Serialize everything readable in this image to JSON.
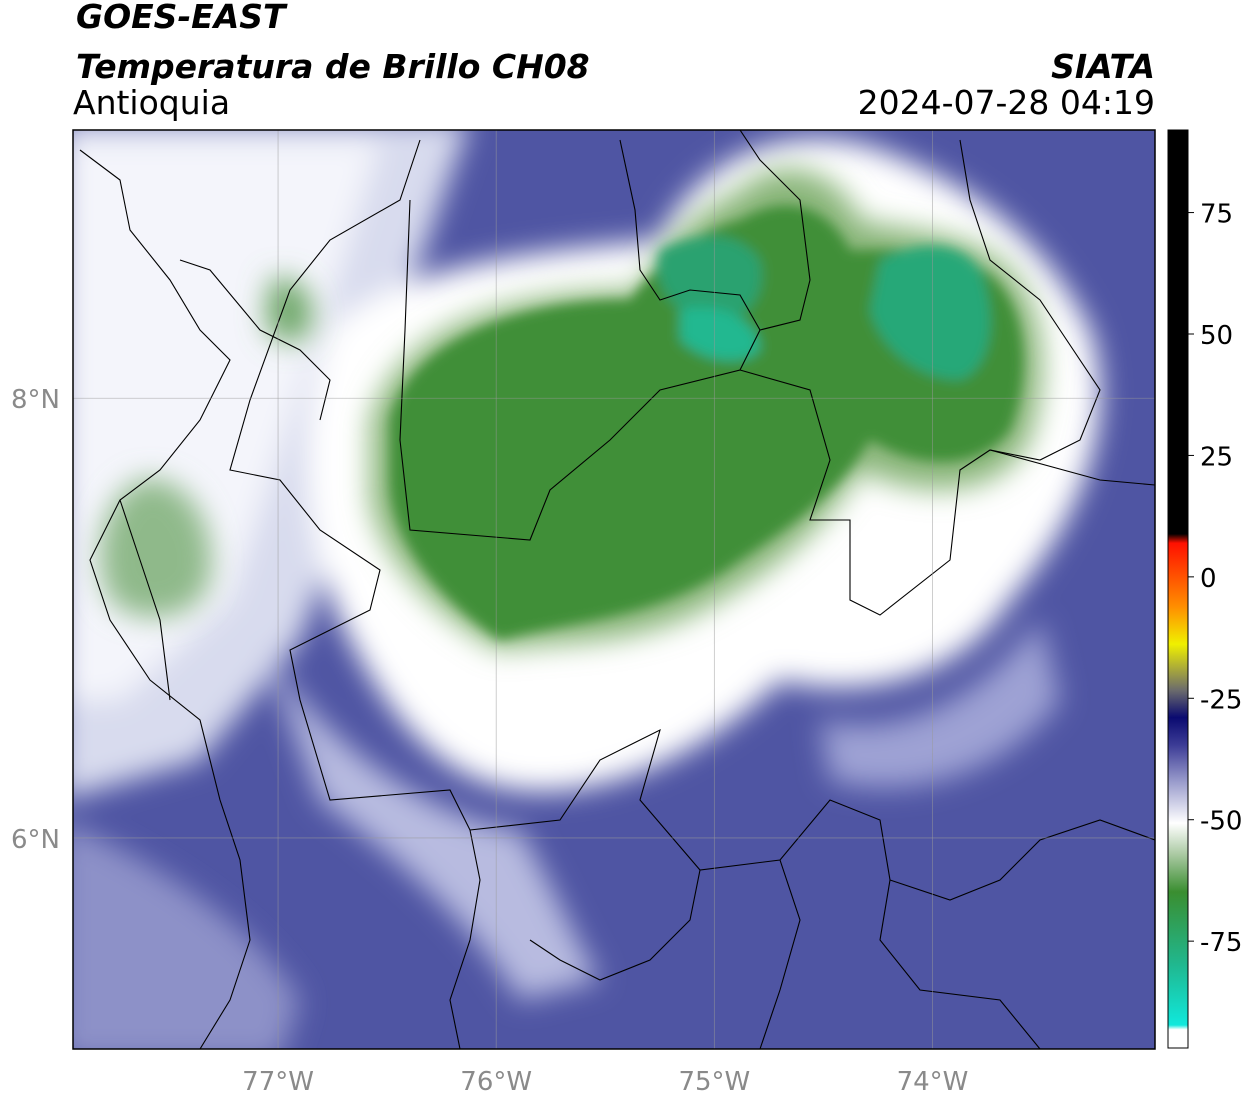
{
  "header": {
    "title": "GOES-EAST",
    "subtitle": "Temperatura de Brillo CH08",
    "region": "Antioquia",
    "source": "SIATA",
    "datetime": "2024-07-28 04:19"
  },
  "map": {
    "xlim": [
      -77.94,
      -72.98
    ],
    "ylim": [
      5.04,
      9.22
    ],
    "xticks": [
      {
        "value": -77,
        "label": "77°W"
      },
      {
        "value": -76,
        "label": "76°W"
      },
      {
        "value": -75,
        "label": "75°W"
      },
      {
        "value": -74,
        "label": "74°W"
      }
    ],
    "yticks": [
      {
        "value": 6,
        "label": "6°N"
      },
      {
        "value": 8,
        "label": "8°N"
      }
    ],
    "grid": true
  },
  "colorbar": {
    "lim": [
      -97,
      92
    ],
    "ticks": [
      -75,
      -50,
      -25,
      0,
      25,
      50,
      75
    ]
  }
}
